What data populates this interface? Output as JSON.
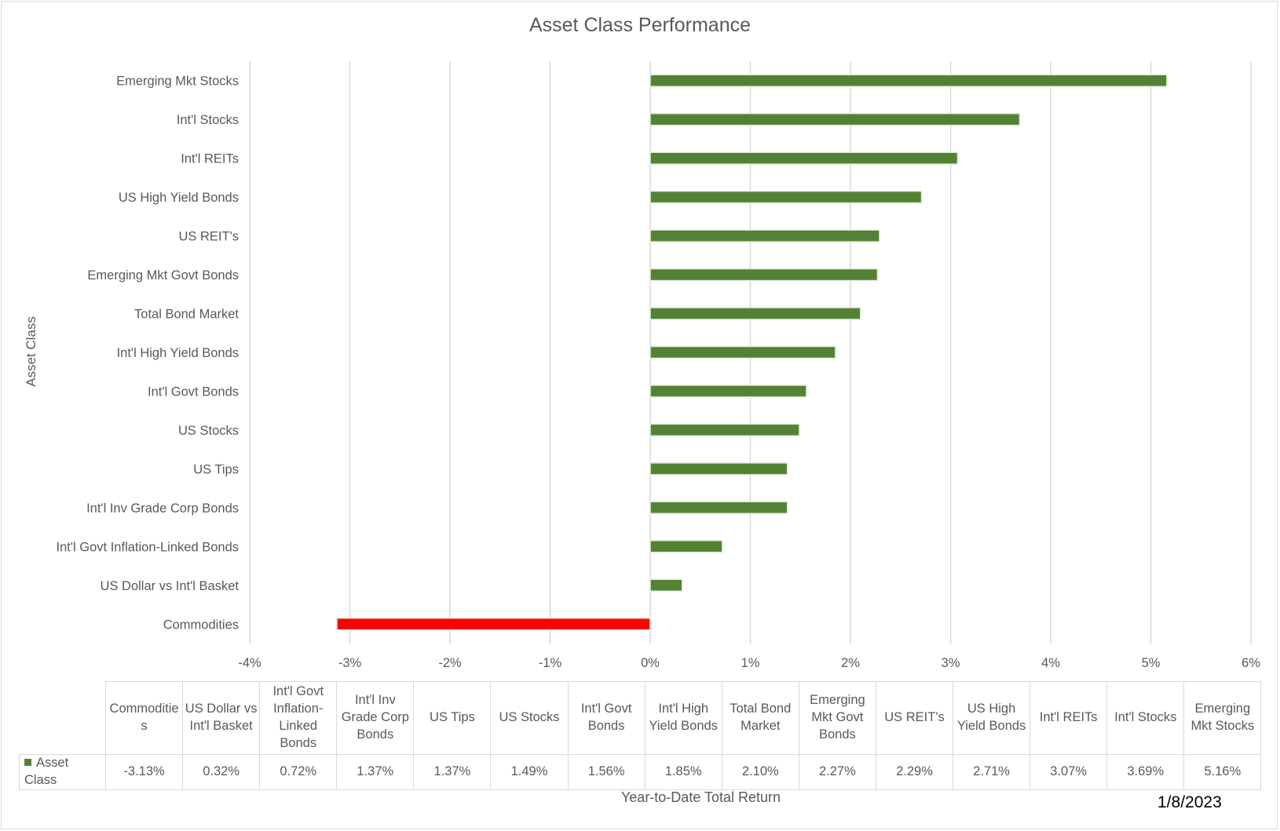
{
  "chart_data": {
    "type": "bar",
    "orientation": "horizontal",
    "title": "Asset Class Performance",
    "xlabel": "Year-to-Date Total Return",
    "ylabel": "Asset Class",
    "date": "1/8/2023",
    "xlim": [
      -4,
      6
    ],
    "x_ticks": [
      "-4%",
      "-3%",
      "-2%",
      "-1%",
      "0%",
      "1%",
      "2%",
      "3%",
      "4%",
      "5%",
      "6%"
    ],
    "grid": true,
    "positive_color": "#548235",
    "negative_color": "#ff0000",
    "categories": [
      "Emerging Mkt Stocks",
      "Int'l Stocks",
      "Int'l REITs",
      "US High Yield Bonds",
      "US REIT's",
      "Emerging Mkt Govt Bonds",
      "Total Bond Market",
      "Int'l High Yield Bonds",
      "Int'l Govt Bonds",
      "US Stocks",
      "US Tips",
      "Int'l Inv Grade Corp Bonds",
      "Int'l Govt Inflation-Linked Bonds",
      "US Dollar vs Int'l Basket",
      "Commodities"
    ],
    "values": [
      5.16,
      3.69,
      3.07,
      2.71,
      2.29,
      2.27,
      2.1,
      1.85,
      1.56,
      1.49,
      1.37,
      1.37,
      0.72,
      0.32,
      -3.13
    ],
    "series": [
      {
        "name": "Asset Class",
        "values": [
          5.16,
          3.69,
          3.07,
          2.71,
          2.29,
          2.27,
          2.1,
          1.85,
          1.56,
          1.49,
          1.37,
          1.37,
          0.72,
          0.32,
          -3.13
        ]
      }
    ],
    "table": {
      "series_label": "Asset Class",
      "headers": [
        "Commoditie s",
        "US Dollar vs Int'l Basket",
        "Int'l Govt Inflation-Linked Bonds",
        "Int'l Inv Grade Corp Bonds",
        "US Tips",
        "US Stocks",
        "Int'l Govt Bonds",
        "Int'l High Yield Bonds",
        "Total Bond Market",
        "Emerging Mkt Govt Bonds",
        "US REIT's",
        "US High Yield Bonds",
        "Int'l REITs",
        "Int'l Stocks",
        "Emerging Mkt Stocks"
      ],
      "values": [
        "-3.13%",
        "0.32%",
        "0.72%",
        "1.37%",
        "1.37%",
        "1.49%",
        "1.56%",
        "1.85%",
        "2.10%",
        "2.27%",
        "2.29%",
        "2.71%",
        "3.07%",
        "3.69%",
        "5.16%"
      ]
    }
  }
}
